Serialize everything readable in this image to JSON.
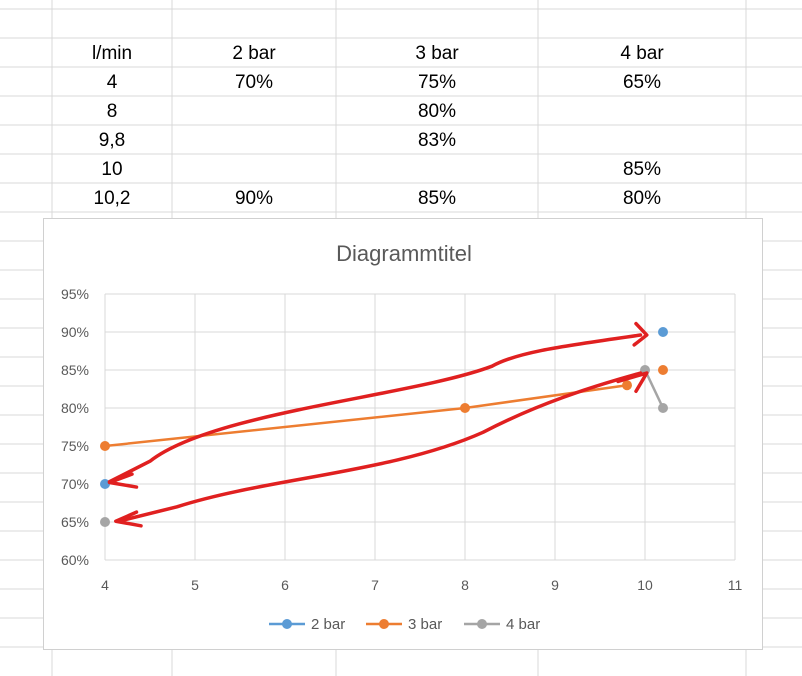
{
  "table": {
    "headers": [
      "l/min",
      "2 bar",
      "3 bar",
      "4 bar"
    ],
    "rows": [
      [
        "4",
        "70%",
        "75%",
        "65%"
      ],
      [
        "8",
        "",
        "80%",
        ""
      ],
      [
        "9,8",
        "",
        "83%",
        ""
      ],
      [
        "10",
        "",
        "",
        "85%"
      ],
      [
        "10,2",
        "90%",
        "85%",
        "80%"
      ]
    ]
  },
  "chart_data": {
    "type": "scatter",
    "title": "Diagrammtitel",
    "xlabel": "",
    "ylabel": "",
    "xlim": [
      4,
      11
    ],
    "ylim": [
      60,
      95
    ],
    "x_ticks": [
      "4",
      "5",
      "6",
      "7",
      "8",
      "9",
      "10",
      "11"
    ],
    "y_ticks": [
      "60%",
      "65%",
      "70%",
      "75%",
      "80%",
      "85%",
      "90%",
      "95%"
    ],
    "grid": true,
    "legend_position": "bottom",
    "series": [
      {
        "name": "2 bar",
        "color": "#5b9bd5",
        "points": [
          [
            4,
            70
          ],
          [
            10.2,
            90
          ]
        ],
        "connect": false
      },
      {
        "name": "3 bar",
        "color": "#ed7d31",
        "points": [
          [
            4,
            75
          ],
          [
            8,
            80
          ],
          [
            9.8,
            83
          ],
          [
            10.2,
            85
          ]
        ],
        "connect": "partial"
      },
      {
        "name": "4 bar",
        "color": "#a5a5a5",
        "points": [
          [
            4,
            65
          ],
          [
            10,
            85
          ],
          [
            10.2,
            80
          ]
        ],
        "connect": "partial"
      }
    ],
    "annotations": [
      {
        "type": "freehand-arrow",
        "color": "#e02020",
        "from": [
          9.95,
          89.5
        ],
        "to": [
          4.05,
          70
        ]
      },
      {
        "type": "freehand-arrow",
        "color": "#e02020",
        "from": [
          9.95,
          84.5
        ],
        "to": [
          4.15,
          65
        ]
      }
    ]
  }
}
